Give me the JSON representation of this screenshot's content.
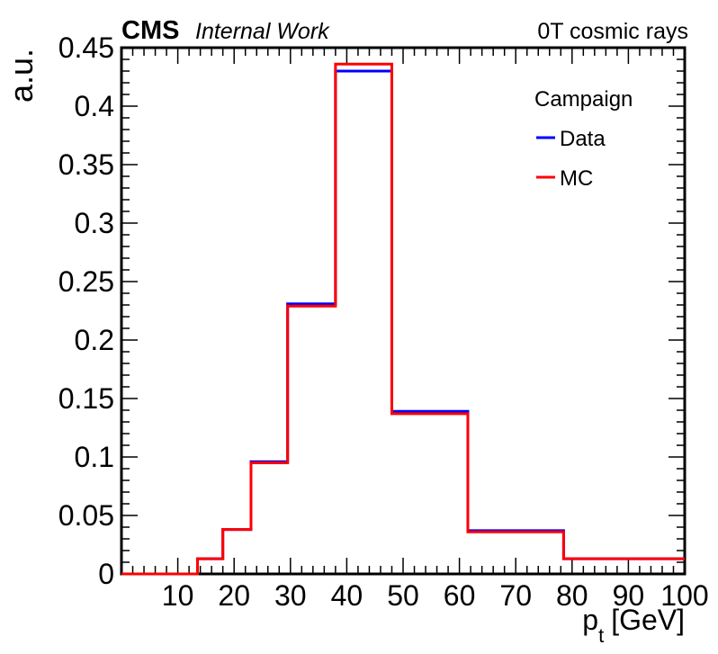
{
  "header": {
    "experiment": "CMS",
    "status": "Internal Work",
    "dataset": "0T cosmic rays"
  },
  "legend_title": "Campaign",
  "chart_data": {
    "type": "step",
    "xlabel_main": "p",
    "xlabel_sub": "t",
    "xlabel_unit": "[GeV]",
    "ylabel": "a.u.",
    "xlim": [
      0,
      100
    ],
    "ylim": [
      0,
      0.45
    ],
    "xticks": [
      "10",
      "20",
      "30",
      "40",
      "50",
      "60",
      "70",
      "80",
      "90",
      "100"
    ],
    "yticks": [
      "0",
      "0.05",
      "0.1",
      "0.15",
      "0.2",
      "0.25",
      "0.3",
      "0.35",
      "0.4",
      "0.45"
    ],
    "bin_edges": [
      0,
      13.5,
      18,
      23,
      29.5,
      38,
      48,
      61.5,
      78.5,
      100
    ],
    "legend_position": "top-right",
    "series": [
      {
        "name": "Data",
        "color": "#0000ff",
        "values": [
          0.0,
          0.013,
          0.038,
          0.096,
          0.231,
          0.43,
          0.139,
          0.037,
          0.013
        ]
      },
      {
        "name": "MC",
        "color": "#ff0000",
        "values": [
          0.0,
          0.013,
          0.038,
          0.095,
          0.229,
          0.436,
          0.137,
          0.036,
          0.013
        ]
      }
    ]
  }
}
